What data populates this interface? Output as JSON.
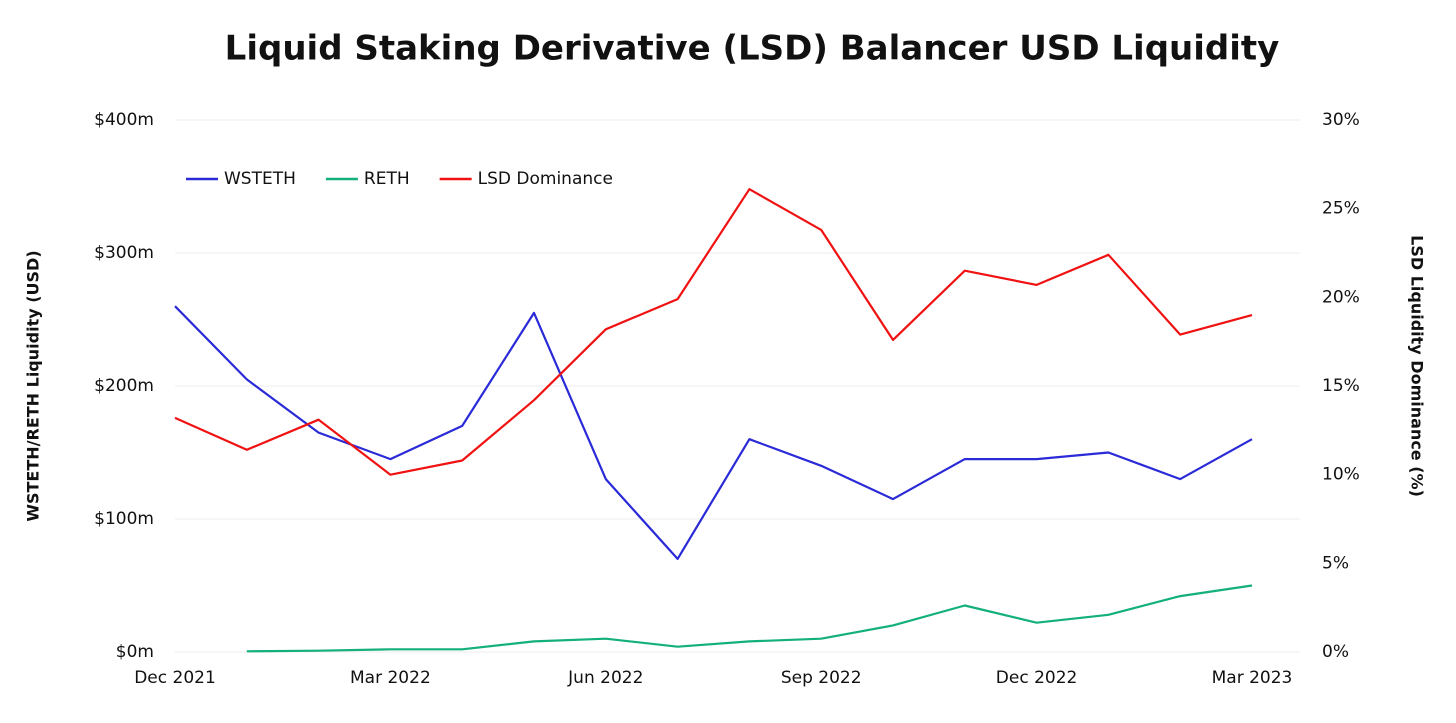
{
  "chart_data": {
    "type": "line",
    "title": "Liquid Staking Derivative (LSD) Balancer USD Liquidity",
    "y_label": "WSTETH/RETH Liquidity (USD)",
    "y2_label": "LSD Liquidity Dominance (%)",
    "x": [
      "2021-12",
      "2022-01",
      "2022-02",
      "2022-03",
      "2022-04",
      "2022-05",
      "2022-06",
      "2022-07",
      "2022-08",
      "2022-09",
      "2022-10",
      "2022-11",
      "2022-12",
      "2023-01",
      "2023-02",
      "2023-03"
    ],
    "xticks": [
      {
        "value": "2021-12",
        "label": "Dec 2021"
      },
      {
        "value": "2022-03",
        "label": "Mar 2022"
      },
      {
        "value": "2022-06",
        "label": "Jun 2022"
      },
      {
        "value": "2022-09",
        "label": "Sep 2022"
      },
      {
        "value": "2022-12",
        "label": "Dec 2022"
      },
      {
        "value": "2023-03",
        "label": "Mar 2023"
      }
    ],
    "ylim": [
      0,
      400
    ],
    "yticks": [
      {
        "value": 0,
        "label": "$0m"
      },
      {
        "value": 100,
        "label": "$100m"
      },
      {
        "value": 200,
        "label": "$200m"
      },
      {
        "value": 300,
        "label": "$300m"
      },
      {
        "value": 400,
        "label": "$400m"
      }
    ],
    "y2lim": [
      0,
      30
    ],
    "y2ticks": [
      {
        "value": 0,
        "label": "0%"
      },
      {
        "value": 5,
        "label": "5%"
      },
      {
        "value": 10,
        "label": "10%"
      },
      {
        "value": 15,
        "label": "15%"
      },
      {
        "value": 20,
        "label": "20%"
      },
      {
        "value": 25,
        "label": "25%"
      },
      {
        "value": 30,
        "label": "30%"
      }
    ],
    "grid": true,
    "legend": "top-left",
    "series": [
      {
        "name": "WSTETH",
        "color": "#2a2ad8",
        "values": [
          260,
          205,
          165,
          145,
          170,
          255,
          130,
          70,
          160,
          140,
          115,
          145,
          145,
          150,
          130,
          160
        ]
      },
      {
        "name": "RETH",
        "color": "#13b07b",
        "values": [
          null,
          0.5,
          1,
          2,
          2,
          8,
          10,
          4,
          8,
          10,
          20,
          35,
          22,
          28,
          42,
          50
        ]
      },
      {
        "name": "LSD Dominance",
        "color": "#f01212",
        "axis": "y2",
        "values": [
          13.2,
          11.4,
          13.1,
          10.0,
          10.8,
          14.2,
          18.2,
          19.9,
          26.1,
          23.8,
          17.6,
          21.5,
          20.7,
          22.4,
          17.9,
          19.0
        ]
      }
    ]
  }
}
